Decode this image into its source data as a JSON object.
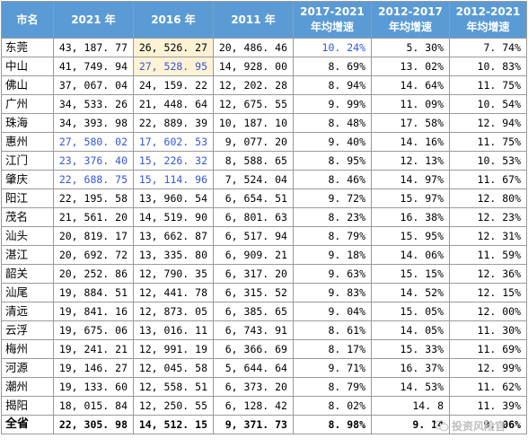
{
  "headers": [
    "市名",
    "2021 年",
    "2016 年",
    "2011 年",
    "2017-2021 年均增速",
    "2012-2017 年均增速",
    "2012-2021 年均增速"
  ],
  "rows": [
    {
      "city": "东莞",
      "v2021": "43, 187. 77",
      "v2016": "26, 526. 27",
      "v2011": "20, 486. 46",
      "g1721": "10. 24%",
      "g1217": "5. 30%",
      "g1221": "7. 74%"
    },
    {
      "city": "中山",
      "v2021": "41, 749. 94",
      "v2016": "27, 528. 95",
      "v2011": "14, 928. 00",
      "g1721": "8. 69%",
      "g1217": "13. 02%",
      "g1221": "10. 83%"
    },
    {
      "city": "佛山",
      "v2021": "37, 067. 04",
      "v2016": "24, 159. 22",
      "v2011": "12, 202. 28",
      "g1721": "8. 94%",
      "g1217": "14. 64%",
      "g1221": "11. 75%"
    },
    {
      "city": "广州",
      "v2021": "34, 533. 26",
      "v2016": "21, 448. 64",
      "v2011": "12, 675. 55",
      "g1721": "9. 99%",
      "g1217": "11. 09%",
      "g1221": "10. 54%"
    },
    {
      "city": "珠海",
      "v2021": "34, 393. 98",
      "v2016": "22, 889. 39",
      "v2011": "10, 187. 10",
      "g1721": "8. 48%",
      "g1217": "17. 58%",
      "g1221": "12. 94%"
    },
    {
      "city": "惠州",
      "v2021": "27, 580. 02",
      "v2016": "17, 602. 53",
      "v2011": "9, 077. 20",
      "g1721": "9. 40%",
      "g1217": "14. 16%",
      "g1221": "11. 75%"
    },
    {
      "city": "江门",
      "v2021": "23, 376. 40",
      "v2016": "15, 226. 32",
      "v2011": "8, 588. 65",
      "g1721": "8. 95%",
      "g1217": "12. 13%",
      "g1221": "10. 53%"
    },
    {
      "city": "肇庆",
      "v2021": "22, 688. 75",
      "v2016": "15, 114. 96",
      "v2011": "7, 524. 04",
      "g1721": "8. 46%",
      "g1217": "14. 97%",
      "g1221": "11. 67%"
    },
    {
      "city": "阳江",
      "v2021": "22, 195. 58",
      "v2016": "13, 960. 54",
      "v2011": "6, 654. 51",
      "g1721": "9. 72%",
      "g1217": "15. 97%",
      "g1221": "12. 80%"
    },
    {
      "city": "茂名",
      "v2021": "21, 561. 20",
      "v2016": "14, 519. 90",
      "v2011": "6, 801. 63",
      "g1721": "8. 23%",
      "g1217": "16. 38%",
      "g1221": "12. 23%"
    },
    {
      "city": "汕头",
      "v2021": "20, 819. 17",
      "v2016": "13, 662. 87",
      "v2011": "6, 517. 94",
      "g1721": "8. 79%",
      "g1217": "15. 95%",
      "g1221": "12. 31%"
    },
    {
      "city": "湛江",
      "v2021": "20, 692. 72",
      "v2016": "13, 335. 80",
      "v2011": "6, 909. 21",
      "g1721": "9. 18%",
      "g1217": "14. 06%",
      "g1221": "11. 59%"
    },
    {
      "city": "韶关",
      "v2021": "20, 252. 86",
      "v2016": "12, 790. 35",
      "v2011": "6, 317. 20",
      "g1721": "9. 63%",
      "g1217": "15. 15%",
      "g1221": "12. 36%"
    },
    {
      "city": "汕尾",
      "v2021": "19, 884. 51",
      "v2016": "12, 441. 78",
      "v2011": "6, 315. 52",
      "g1721": "9. 83%",
      "g1217": "14. 52%",
      "g1221": "12. 15%"
    },
    {
      "city": "清远",
      "v2021": "19, 841. 16",
      "v2016": "12, 873. 05",
      "v2011": "6, 385. 65",
      "g1721": "9. 04%",
      "g1217": "15. 05%",
      "g1221": "12. 00%"
    },
    {
      "city": "云浮",
      "v2021": "19, 675. 06",
      "v2016": "13, 016. 11",
      "v2011": "6, 743. 91",
      "g1721": "8. 61%",
      "g1217": "14. 05%",
      "g1221": "11. 30%"
    },
    {
      "city": "梅州",
      "v2021": "19, 241. 21",
      "v2016": "12, 991. 19",
      "v2011": "6, 366. 69",
      "g1721": "8. 17%",
      "g1217": "15. 33%",
      "g1221": "11. 69%"
    },
    {
      "city": "河源",
      "v2021": "19, 146. 27",
      "v2016": "12, 045. 58",
      "v2011": "5, 644. 64",
      "g1721": "9. 71%",
      "g1217": "16. 37%",
      "g1221": "12. 99%"
    },
    {
      "city": "潮州",
      "v2021": "19, 133. 60",
      "v2016": "12, 558. 51",
      "v2011": "6, 373. 20",
      "g1721": "8. 79%",
      "g1217": "14. 53%",
      "g1221": "11. 62%"
    },
    {
      "city": "揭阳",
      "v2021": "18, 015. 84",
      "v2016": "12, 250. 55",
      "v2011": "6, 128. 42",
      "g1721": "8. 02%",
      "g1217": "14. 8",
      "g1221": "11. 39%"
    }
  ],
  "total": {
    "city": "全省",
    "v2021": "22, 305. 98",
    "v2016": "14, 512. 15",
    "v2011": "9, 371. 73",
    "g1721": "8. 98%",
    "g1217": "9. 14",
    "g1221": "9. 06%"
  },
  "highlights": {
    "blue_text": [
      [
        0,
        "g1721"
      ],
      [
        1,
        "v2016"
      ],
      [
        5,
        "v2021"
      ],
      [
        5,
        "v2016"
      ],
      [
        6,
        "v2021"
      ],
      [
        6,
        "v2016"
      ],
      [
        7,
        "v2021"
      ],
      [
        7,
        "v2016"
      ]
    ],
    "yellow_bg": [
      [
        0,
        "v2016"
      ],
      [
        1,
        "v2016"
      ]
    ]
  },
  "colors": {
    "header_bg": "#5b9bd5",
    "header_text": "#ffffff",
    "highlight_blue": "#3355dd",
    "highlight_yellow": "#fdf2d4"
  },
  "watermark": {
    "icon": "wechat-icon",
    "text": "投资风险官"
  }
}
